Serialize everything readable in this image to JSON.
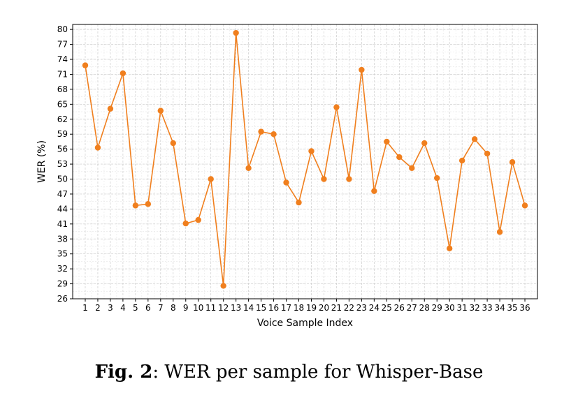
{
  "chart_data": {
    "type": "line",
    "xlabel": "Voice Sample Index",
    "ylabel": "WER (%)",
    "ylim": [
      26,
      81
    ],
    "yticks": [
      26,
      29,
      32,
      35,
      38,
      41,
      44,
      47,
      50,
      53,
      56,
      59,
      62,
      65,
      68,
      71,
      74,
      77,
      80
    ],
    "x": [
      1,
      2,
      3,
      4,
      5,
      6,
      7,
      8,
      9,
      10,
      11,
      12,
      13,
      14,
      15,
      16,
      17,
      18,
      19,
      20,
      21,
      22,
      23,
      24,
      25,
      26,
      27,
      28,
      29,
      30,
      31,
      32,
      33,
      34,
      35,
      36
    ],
    "series": [
      {
        "values": [
          72.8,
          56.3,
          64.1,
          71.2,
          44.7,
          45.0,
          63.7,
          57.2,
          41.1,
          41.8,
          50.0,
          28.6,
          79.3,
          52.2,
          59.5,
          59.0,
          49.3,
          45.3,
          55.6,
          50.0,
          64.4,
          50.0,
          71.9,
          47.6,
          57.5,
          54.4,
          52.2,
          57.2,
          50.2,
          36.1,
          53.7,
          58.0,
          55.1,
          39.4,
          53.4,
          44.7
        ],
        "color": "#f07f1e"
      }
    ],
    "grid": true
  },
  "caption": {
    "label": "Fig. 2",
    "text": ": WER per sample for Whisper-Base"
  }
}
